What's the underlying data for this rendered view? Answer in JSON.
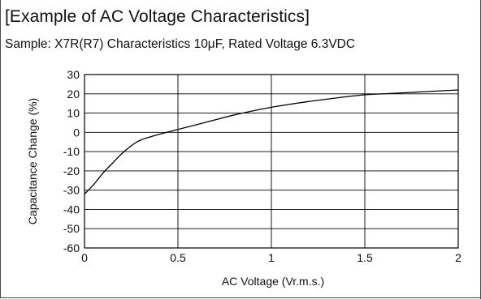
{
  "chart_data": {
    "type": "line",
    "title": "[Example of  AC Voltage Characteristics]",
    "subtitle": "Sample: X7R(R7) Characteristics 10μF, Rated Voltage 6.3VDC",
    "xlabel": "AC Voltage (Vr.m.s.)",
    "ylabel": "Capacitance Change (%)",
    "xlim": [
      0,
      2
    ],
    "ylim": [
      -60,
      30
    ],
    "x_ticks": [
      0,
      0.5,
      1,
      1.5,
      2
    ],
    "x_tick_labels": [
      "0",
      "0.5",
      "1",
      "1.5",
      "2"
    ],
    "y_ticks": [
      30,
      20,
      10,
      0,
      -10,
      -20,
      -30,
      -40,
      -50,
      -60
    ],
    "y_tick_labels": [
      "30",
      "20",
      "10",
      "0",
      "-10",
      "-20",
      "-30",
      "-40",
      "-50",
      "-60"
    ],
    "grid": true,
    "line_color": "#000000",
    "grid_color": "#000000",
    "series": [
      {
        "x": [
          0,
          0.05,
          0.1,
          0.15,
          0.2,
          0.25,
          0.3,
          0.4,
          0.5,
          0.6,
          0.7,
          0.8,
          1.0,
          1.2,
          1.4,
          1.5,
          1.6,
          1.8,
          2.0
        ],
        "values": [
          -32,
          -27,
          -21,
          -16,
          -11,
          -7,
          -4,
          -1,
          1.5,
          4,
          6.5,
          9,
          13,
          16,
          18.5,
          19.5,
          20,
          21,
          22
        ]
      }
    ]
  }
}
